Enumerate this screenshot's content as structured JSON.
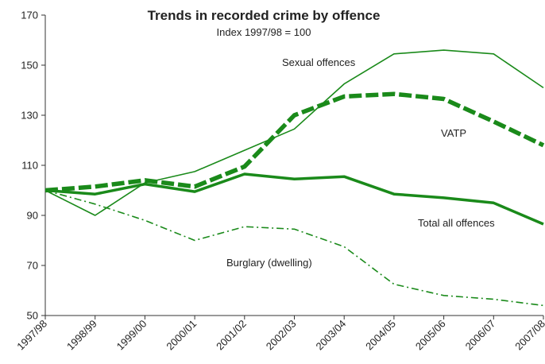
{
  "chart_data": {
    "type": "line",
    "title": "Trends in recorded crime by offence",
    "subtitle": "Index 1997/98 = 100",
    "xlabel": "",
    "ylabel": "",
    "categories": [
      "1997/98",
      "1998/99",
      "1999/00",
      "2000/01",
      "2001/02",
      "2002/03",
      "2003/04",
      "2004/05",
      "2005/06",
      "2006/07",
      "2007/08"
    ],
    "ylim": [
      50,
      170
    ],
    "yticks": [
      50,
      70,
      90,
      110,
      130,
      150,
      170
    ],
    "grid": false,
    "legend": "none",
    "series": [
      {
        "name": "Sexual offences",
        "values": [
          100,
          90,
          103,
          107.5,
          116,
          124.5,
          142.5,
          154.5,
          156,
          154.5,
          141
        ],
        "color": "#1a8a1a",
        "style": "thin"
      },
      {
        "name": "VATP",
        "values": [
          100,
          101.5,
          104,
          101.5,
          109.5,
          130,
          137.5,
          138.5,
          136.5,
          127.5,
          118
        ],
        "color": "#1a8a1a",
        "style": "dashed"
      },
      {
        "name": "Total all offences",
        "values": [
          100,
          98.5,
          102.5,
          99.5,
          106.5,
          104.5,
          105.5,
          98.5,
          97,
          95,
          86.5
        ],
        "color": "#1a8a1a",
        "style": "thick"
      },
      {
        "name": "Burglary (dwelling)",
        "values": [
          100,
          94.5,
          88,
          80,
          85.5,
          84.5,
          77.5,
          62.5,
          58,
          56.5,
          54
        ],
        "color": "#1a8a1a",
        "style": "dashdot"
      }
    ]
  }
}
